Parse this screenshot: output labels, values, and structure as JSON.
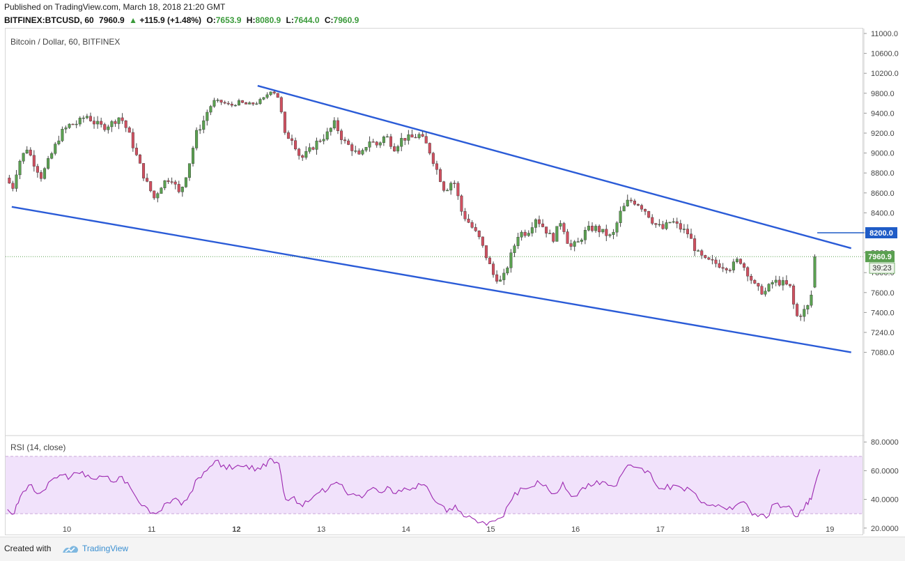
{
  "header": {
    "published": "Published on TradingView.com, March 18, 2018 21:20 GMT",
    "symbol": "BITFINEX:BTCUSD, 60",
    "last": "7960.9",
    "change": "+115.9 (+1.48%)",
    "o_label": "O:",
    "o_value": "7653.9",
    "h_label": "H:",
    "h_value": "8080.9",
    "l_label": "L:",
    "l_value": "7644.0",
    "c_label": "C:",
    "c_value": "7960.9"
  },
  "footer": {
    "created_with": "Created with",
    "brand": "TradingView"
  },
  "chart_data": {
    "type": "candlestick",
    "title": "Bitcoin / Dollar, 60, BITFINEX",
    "price_axis": {
      "min": 7040,
      "max": 11040,
      "ticks": [
        "11000.0",
        "10600.0",
        "10200.0",
        "9800.0",
        "9400.0",
        "9200.0",
        "9000.0",
        "8800.0",
        "8600.0",
        "8400.0",
        "8200.0",
        "8000.0",
        "7800.0",
        "7600.0",
        "7400.0",
        "7240.0",
        "7080.0"
      ]
    },
    "time_axis": {
      "labels": [
        "10",
        "11",
        "12",
        "13",
        "14",
        "15",
        "16",
        "17",
        "18",
        "19"
      ],
      "bold": [
        "12"
      ]
    },
    "last_price": {
      "value": 7960.9,
      "label": "7960.9",
      "countdown": "39:23",
      "color": "#5aa050"
    },
    "level_line": {
      "value": 8200,
      "label": "8200.0",
      "color": "#1f5cc7"
    },
    "trendlines": [
      {
        "name": "upper-trendline",
        "from": {
          "day": 12.25,
          "price": 9950
        },
        "to": {
          "day": 19.25,
          "price": 8045
        }
      },
      {
        "name": "lower-trendline",
        "from": {
          "day": 9.35,
          "price": 8460
        },
        "to": {
          "day": 19.25,
          "price": 7080
        }
      }
    ],
    "price_path": [
      [
        9.3,
        8750
      ],
      [
        9.38,
        8650
      ],
      [
        9.45,
        8900
      ],
      [
        9.55,
        9050
      ],
      [
        9.62,
        8920
      ],
      [
        9.72,
        8760
      ],
      [
        9.82,
        8950
      ],
      [
        9.95,
        9200
      ],
      [
        10.05,
        9280
      ],
      [
        10.15,
        9300
      ],
      [
        10.25,
        9380
      ],
      [
        10.35,
        9300
      ],
      [
        10.45,
        9260
      ],
      [
        10.55,
        9300
      ],
      [
        10.65,
        9370
      ],
      [
        10.75,
        9200
      ],
      [
        10.85,
        8950
      ],
      [
        10.95,
        8720
      ],
      [
        11.05,
        8550
      ],
      [
        11.15,
        8700
      ],
      [
        11.25,
        8760
      ],
      [
        11.35,
        8580
      ],
      [
        11.45,
        8850
      ],
      [
        11.55,
        9200
      ],
      [
        11.65,
        9350
      ],
      [
        11.75,
        9640
      ],
      [
        11.85,
        9620
      ],
      [
        11.95,
        9550
      ],
      [
        12.05,
        9620
      ],
      [
        12.15,
        9570
      ],
      [
        12.25,
        9600
      ],
      [
        12.35,
        9700
      ],
      [
        12.42,
        9860
      ],
      [
        12.5,
        9790
      ],
      [
        12.58,
        9180
      ],
      [
        12.68,
        9150
      ],
      [
        12.78,
        8940
      ],
      [
        12.88,
        9020
      ],
      [
        12.98,
        9120
      ],
      [
        13.08,
        9180
      ],
      [
        13.18,
        9300
      ],
      [
        13.28,
        9120
      ],
      [
        13.38,
        9050
      ],
      [
        13.48,
        8950
      ],
      [
        13.58,
        9130
      ],
      [
        13.68,
        9080
      ],
      [
        13.78,
        9180
      ],
      [
        13.88,
        9050
      ],
      [
        13.98,
        9150
      ],
      [
        14.08,
        9150
      ],
      [
        14.18,
        9180
      ],
      [
        14.28,
        9060
      ],
      [
        14.38,
        8840
      ],
      [
        14.48,
        8620
      ],
      [
        14.58,
        8740
      ],
      [
        14.68,
        8400
      ],
      [
        14.78,
        8280
      ],
      [
        14.88,
        8150
      ],
      [
        14.95,
        8000
      ],
      [
        15.05,
        7780
      ],
      [
        15.15,
        7700
      ],
      [
        15.25,
        7950
      ],
      [
        15.35,
        8200
      ],
      [
        15.45,
        8200
      ],
      [
        15.55,
        8350
      ],
      [
        15.65,
        8250
      ],
      [
        15.75,
        8130
      ],
      [
        15.85,
        8330
      ],
      [
        15.95,
        8050
      ],
      [
        16.05,
        8100
      ],
      [
        16.15,
        8230
      ],
      [
        16.25,
        8250
      ],
      [
        16.35,
        8200
      ],
      [
        16.45,
        8150
      ],
      [
        16.55,
        8400
      ],
      [
        16.65,
        8530
      ],
      [
        16.75,
        8500
      ],
      [
        16.85,
        8420
      ],
      [
        16.95,
        8290
      ],
      [
        17.05,
        8240
      ],
      [
        17.15,
        8320
      ],
      [
        17.25,
        8250
      ],
      [
        17.35,
        8190
      ],
      [
        17.45,
        8000
      ],
      [
        17.55,
        7920
      ],
      [
        17.65,
        7900
      ],
      [
        17.75,
        7870
      ],
      [
        17.85,
        7850
      ],
      [
        17.95,
        7940
      ],
      [
        18.05,
        7800
      ],
      [
        18.15,
        7640
      ],
      [
        18.25,
        7600
      ],
      [
        18.35,
        7710
      ],
      [
        18.45,
        7700
      ],
      [
        18.55,
        7650
      ],
      [
        18.62,
        7360
      ],
      [
        18.72,
        7420
      ],
      [
        18.78,
        7480
      ],
      [
        18.88,
        7960
      ]
    ]
  },
  "rsi": {
    "label": "RSI (14, close)",
    "axis": {
      "min": 16,
      "max": 84,
      "ticks": [
        "80.0000",
        "60.0000",
        "40.0000",
        "20.0000"
      ]
    },
    "band": {
      "upper": 70,
      "lower": 30
    },
    "color": "#9c27b0",
    "series": [
      [
        9.3,
        33
      ],
      [
        9.38,
        30
      ],
      [
        9.45,
        42
      ],
      [
        9.55,
        50
      ],
      [
        9.65,
        44
      ],
      [
        9.75,
        47
      ],
      [
        9.85,
        55
      ],
      [
        9.95,
        57
      ],
      [
        10.05,
        56
      ],
      [
        10.15,
        58
      ],
      [
        10.25,
        57
      ],
      [
        10.35,
        54
      ],
      [
        10.45,
        56
      ],
      [
        10.55,
        52
      ],
      [
        10.65,
        56
      ],
      [
        10.75,
        48
      ],
      [
        10.85,
        38
      ],
      [
        10.95,
        34
      ],
      [
        11.05,
        30
      ],
      [
        11.15,
        37
      ],
      [
        11.25,
        40
      ],
      [
        11.35,
        36
      ],
      [
        11.45,
        44
      ],
      [
        11.55,
        55
      ],
      [
        11.65,
        60
      ],
      [
        11.75,
        67
      ],
      [
        11.85,
        64
      ],
      [
        11.95,
        61
      ],
      [
        12.05,
        63
      ],
      [
        12.15,
        61
      ],
      [
        12.25,
        62
      ],
      [
        12.35,
        63
      ],
      [
        12.42,
        68
      ],
      [
        12.5,
        65
      ],
      [
        12.58,
        40
      ],
      [
        12.68,
        42
      ],
      [
        12.78,
        35
      ],
      [
        12.88,
        40
      ],
      [
        12.98,
        45
      ],
      [
        13.08,
        47
      ],
      [
        13.18,
        52
      ],
      [
        13.28,
        46
      ],
      [
        13.38,
        44
      ],
      [
        13.48,
        41
      ],
      [
        13.58,
        47
      ],
      [
        13.68,
        45
      ],
      [
        13.78,
        49
      ],
      [
        13.88,
        44
      ],
      [
        13.98,
        48
      ],
      [
        14.08,
        48
      ],
      [
        14.18,
        50
      ],
      [
        14.28,
        45
      ],
      [
        14.38,
        37
      ],
      [
        14.48,
        31
      ],
      [
        14.58,
        36
      ],
      [
        14.68,
        28
      ],
      [
        14.78,
        27
      ],
      [
        14.88,
        24
      ],
      [
        14.95,
        22
      ],
      [
        15.05,
        25
      ],
      [
        15.15,
        28
      ],
      [
        15.25,
        40
      ],
      [
        15.35,
        48
      ],
      [
        15.45,
        48
      ],
      [
        15.55,
        53
      ],
      [
        15.65,
        50
      ],
      [
        15.75,
        44
      ],
      [
        15.85,
        52
      ],
      [
        15.95,
        42
      ],
      [
        16.05,
        46
      ],
      [
        16.15,
        51
      ],
      [
        16.25,
        53
      ],
      [
        16.35,
        52
      ],
      [
        16.45,
        49
      ],
      [
        16.55,
        58
      ],
      [
        16.65,
        64
      ],
      [
        16.75,
        62
      ],
      [
        16.85,
        60
      ],
      [
        16.95,
        50
      ],
      [
        17.05,
        47
      ],
      [
        17.15,
        50
      ],
      [
        17.25,
        48
      ],
      [
        17.35,
        47
      ],
      [
        17.45,
        40
      ],
      [
        17.55,
        36
      ],
      [
        17.65,
        35
      ],
      [
        17.75,
        34
      ],
      [
        17.85,
        33
      ],
      [
        17.95,
        38
      ],
      [
        18.05,
        33
      ],
      [
        18.15,
        28
      ],
      [
        18.25,
        27
      ],
      [
        18.35,
        37
      ],
      [
        18.45,
        35
      ],
      [
        18.55,
        33
      ],
      [
        18.62,
        28
      ],
      [
        18.72,
        38
      ],
      [
        18.78,
        40
      ],
      [
        18.88,
        61
      ]
    ]
  },
  "colors": {
    "up": "#5aa050",
    "down": "#d05060",
    "trend": "#2a5bd7",
    "rsi_band": "#f1e2fb"
  }
}
